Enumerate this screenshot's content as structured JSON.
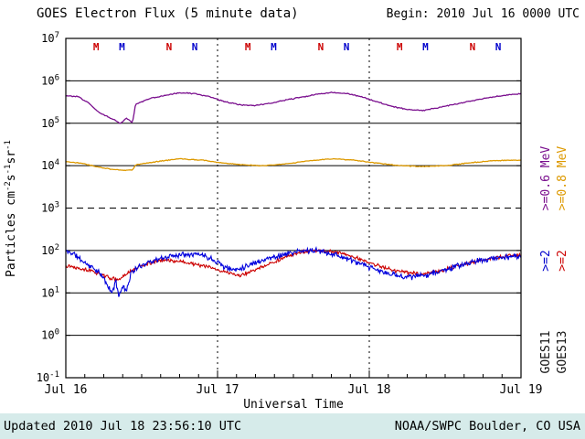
{
  "header": {
    "title": "GOES Electron Flux (5 minute data)",
    "begin": "Begin: 2010 Jul 16 0000 UTC"
  },
  "footer": {
    "updated": "Updated 2010 Jul 18 23:56:10 UTC",
    "credit": "NOAA/SWPC Boulder, CO USA",
    "bar_color": "#d6ebea"
  },
  "chart_data": {
    "type": "line",
    "title": "GOES Electron Flux (5 minute data)",
    "xlabel": "Universal Time",
    "ylabel": "Particles cm-2 s-1 sr-1",
    "ylabel_parts": [
      "Particles cm",
      "-2",
      "s",
      "-1",
      "sr",
      "-1"
    ],
    "x_unit": "days since 2010 Jul 16 0000 UTC",
    "xlim": [
      0,
      3
    ],
    "ylog_exponents": [
      7,
      6,
      5,
      4,
      3,
      2,
      1,
      0,
      -1
    ],
    "dashed_exponent": 3,
    "grid": true,
    "xticks": [
      {
        "t": 0,
        "label": "Jul 16"
      },
      {
        "t": 1,
        "label": "Jul 17"
      },
      {
        "t": 2,
        "label": "Jul 18"
      },
      {
        "t": 3,
        "label": "Jul 19"
      }
    ],
    "day_lines": [
      1,
      2
    ],
    "marker_colors": {
      "red": "#cc0000",
      "blue": "#0000cc"
    },
    "markers": [
      {
        "t": 0.2,
        "letter": "M",
        "color": "red"
      },
      {
        "t": 0.37,
        "letter": "M",
        "color": "blue"
      },
      {
        "t": 0.68,
        "letter": "N",
        "color": "red"
      },
      {
        "t": 0.85,
        "letter": "N",
        "color": "blue"
      },
      {
        "t": 1.2,
        "letter": "M",
        "color": "red"
      },
      {
        "t": 1.37,
        "letter": "M",
        "color": "blue"
      },
      {
        "t": 1.68,
        "letter": "N",
        "color": "red"
      },
      {
        "t": 1.85,
        "letter": "N",
        "color": "blue"
      },
      {
        "t": 2.2,
        "letter": "M",
        "color": "red"
      },
      {
        "t": 2.37,
        "letter": "M",
        "color": "blue"
      },
      {
        "t": 2.68,
        "letter": "N",
        "color": "red"
      },
      {
        "t": 2.85,
        "letter": "N",
        "color": "blue"
      }
    ],
    "series": [
      {
        "id": "goes13-ge06mev",
        "name": "GOES13 >=0.6 MeV",
        "color": "#7a0f8e",
        "width": 1.3,
        "noise": 0.015,
        "seed": 6,
        "samples": 420,
        "anchors": [
          [
            0,
            450000.0
          ],
          [
            0.08,
            420000.0
          ],
          [
            0.15,
            300000.0
          ],
          [
            0.22,
            180000.0
          ],
          [
            0.28,
            140000.0
          ],
          [
            0.32,
            120000.0
          ],
          [
            0.36,
            100000.0
          ],
          [
            0.4,
            130000.0
          ],
          [
            0.44,
            105000.0
          ],
          [
            0.46,
            280000.0
          ],
          [
            0.55,
            380000.0
          ],
          [
            0.65,
            450000.0
          ],
          [
            0.75,
            520000.0
          ],
          [
            0.85,
            500000.0
          ],
          [
            0.95,
            420000.0
          ],
          [
            1.05,
            320000.0
          ],
          [
            1.15,
            270000.0
          ],
          [
            1.25,
            260000.0
          ],
          [
            1.35,
            300000.0
          ],
          [
            1.5,
            380000.0
          ],
          [
            1.65,
            480000.0
          ],
          [
            1.75,
            530000.0
          ],
          [
            1.85,
            500000.0
          ],
          [
            1.95,
            420000.0
          ],
          [
            2.05,
            320000.0
          ],
          [
            2.15,
            250000.0
          ],
          [
            2.25,
            210000.0
          ],
          [
            2.35,
            200000.0
          ],
          [
            2.45,
            230000.0
          ],
          [
            2.6,
            300000.0
          ],
          [
            2.75,
            380000.0
          ],
          [
            2.9,
            460000.0
          ],
          [
            3.0,
            500000.0
          ]
        ]
      },
      {
        "id": "goes13-ge08mev",
        "name": "GOES13 >=0.8 MeV",
        "color": "#dd9900",
        "width": 1.3,
        "noise": 0.012,
        "seed": 8,
        "samples": 420,
        "anchors": [
          [
            0,
            12500.0
          ],
          [
            0.1,
            11500.0
          ],
          [
            0.2,
            9500.0
          ],
          [
            0.3,
            8200.0
          ],
          [
            0.38,
            7800.0
          ],
          [
            0.44,
            8000.0
          ],
          [
            0.46,
            10500.0
          ],
          [
            0.6,
            12500.0
          ],
          [
            0.75,
            14500.0
          ],
          [
            0.9,
            13500.0
          ],
          [
            1.0,
            12000.0
          ],
          [
            1.15,
            10500.0
          ],
          [
            1.3,
            10000.0
          ],
          [
            1.45,
            11000.0
          ],
          [
            1.6,
            13000.0
          ],
          [
            1.75,
            14500.0
          ],
          [
            1.9,
            13500.0
          ],
          [
            2.05,
            11500.0
          ],
          [
            2.2,
            10000.0
          ],
          [
            2.35,
            9500.0
          ],
          [
            2.5,
            10000.0
          ],
          [
            2.65,
            11500.0
          ],
          [
            2.8,
            13000.0
          ],
          [
            2.95,
            13500.0
          ],
          [
            3.0,
            13500.0
          ]
        ]
      },
      {
        "id": "goes13-ge2mev",
        "name": "GOES13 >=2 MeV",
        "color": "#cc0000",
        "width": 1.1,
        "noise": 0.05,
        "seed": 13,
        "samples": 620,
        "anchors": [
          [
            0,
            45
          ],
          [
            0.1,
            38
          ],
          [
            0.2,
            30
          ],
          [
            0.3,
            22
          ],
          [
            0.35,
            20
          ],
          [
            0.4,
            28
          ],
          [
            0.5,
            45
          ],
          [
            0.6,
            55
          ],
          [
            0.65,
            60
          ],
          [
            0.75,
            55
          ],
          [
            0.85,
            48
          ],
          [
            0.95,
            40
          ],
          [
            1.0,
            35
          ],
          [
            1.1,
            28
          ],
          [
            1.15,
            26
          ],
          [
            1.25,
            35
          ],
          [
            1.35,
            50
          ],
          [
            1.45,
            70
          ],
          [
            1.55,
            90
          ],
          [
            1.65,
            100
          ],
          [
            1.75,
            95
          ],
          [
            1.85,
            80
          ],
          [
            1.95,
            60
          ],
          [
            2.05,
            45
          ],
          [
            2.15,
            35
          ],
          [
            2.25,
            30
          ],
          [
            2.35,
            28
          ],
          [
            2.45,
            32
          ],
          [
            2.55,
            40
          ],
          [
            2.65,
            50
          ],
          [
            2.75,
            60
          ],
          [
            2.85,
            70
          ],
          [
            2.95,
            78
          ],
          [
            3.0,
            80
          ]
        ]
      },
      {
        "id": "goes11-ge2mev",
        "name": "GOES11 >=2 MeV",
        "color": "#0000dd",
        "width": 1.1,
        "noise": 0.08,
        "seed": 11,
        "samples": 680,
        "anchors": [
          [
            0,
            95
          ],
          [
            0.05,
            85
          ],
          [
            0.1,
            60
          ],
          [
            0.15,
            45
          ],
          [
            0.2,
            35
          ],
          [
            0.25,
            22
          ],
          [
            0.28,
            14
          ],
          [
            0.3,
            10
          ],
          [
            0.33,
            18
          ],
          [
            0.35,
            9
          ],
          [
            0.38,
            15
          ],
          [
            0.4,
            11
          ],
          [
            0.43,
            30
          ],
          [
            0.5,
            45
          ],
          [
            0.55,
            55
          ],
          [
            0.6,
            60
          ],
          [
            0.7,
            75
          ],
          [
            0.8,
            85
          ],
          [
            0.9,
            80
          ],
          [
            1.0,
            55
          ],
          [
            1.05,
            40
          ],
          [
            1.1,
            35
          ],
          [
            1.15,
            38
          ],
          [
            1.2,
            45
          ],
          [
            1.3,
            60
          ],
          [
            1.4,
            75
          ],
          [
            1.5,
            90
          ],
          [
            1.6,
            100
          ],
          [
            1.7,
            95
          ],
          [
            1.8,
            75
          ],
          [
            1.9,
            55
          ],
          [
            2.0,
            40
          ],
          [
            2.1,
            30
          ],
          [
            2.2,
            25
          ],
          [
            2.3,
            24
          ],
          [
            2.4,
            28
          ],
          [
            2.5,
            35
          ],
          [
            2.6,
            45
          ],
          [
            2.7,
            55
          ],
          [
            2.8,
            65
          ],
          [
            2.9,
            70
          ],
          [
            3.0,
            75
          ]
        ]
      }
    ],
    "right_labels": [
      {
        "text": ">=0.6 MeV",
        "color": "#7a0f8e"
      },
      {
        "text": ">=0.8 MeV",
        "color": "#dd9900"
      },
      {
        "text": ">=2",
        "color": "#0000cc"
      },
      {
        "text": ">=2",
        "color": "#cc0000"
      },
      {
        "text": "GOES11",
        "color": "#111111"
      },
      {
        "text": "GOES13",
        "color": "#111111"
      }
    ]
  }
}
